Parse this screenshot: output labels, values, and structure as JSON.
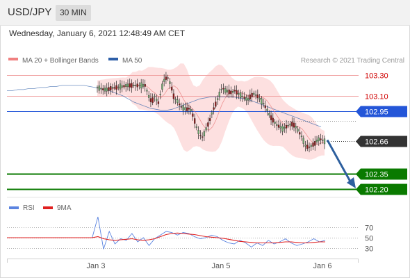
{
  "header": {
    "symbol": "USD/JPY",
    "timeframe": "30 MIN"
  },
  "datetime": "Wednesday, January 6, 2021 12:48:49 AM CET",
  "credit": "Research © 2021 Trading Central",
  "legend_main": [
    {
      "label": "MA 20 + Bollinger Bands",
      "color": "#f08080"
    },
    {
      "label": "MA 50",
      "color": "#2e5fa8"
    }
  ],
  "legend_rsi": [
    {
      "label": "RSI",
      "color": "#5b84e0"
    },
    {
      "label": "9MA",
      "color": "#e02020"
    }
  ],
  "colors": {
    "resistance": "#d00000",
    "pivot": "#2456d8",
    "support": "#0a7a00",
    "last": "#333333",
    "arrow": "#2d5f9e",
    "band_fill": "#fcd6d6"
  },
  "x_ticks": [
    "Jan 3",
    "Jan 5",
    "Jan 6"
  ],
  "rsi_ticks": [
    "70",
    "50",
    "30"
  ],
  "chart_data": [
    {
      "type": "candlestick",
      "x_ticks": [
        "Jan 3",
        "Jan 5",
        "Jan 6"
      ],
      "price_levels": [
        {
          "label": "103.30",
          "value": 103.3,
          "role": "resistance"
        },
        {
          "label": "103.10",
          "value": 103.1,
          "role": "resistance"
        },
        {
          "label": "102.95",
          "value": 102.95,
          "role": "pivot"
        },
        {
          "label": "102.66",
          "value": 102.66,
          "role": "last"
        },
        {
          "label": "102.35",
          "value": 102.35,
          "role": "support"
        },
        {
          "label": "102.20",
          "value": 102.2,
          "role": "support"
        }
      ],
      "close_path": [
        103.18,
        103.17,
        103.16,
        103.16,
        103.17,
        103.18,
        103.18,
        103.19,
        103.19,
        103.2,
        103.2,
        103.2,
        103.2,
        103.2,
        103.2,
        103.2,
        103.1,
        103.04,
        103.1,
        103.02,
        103.16,
        103.26,
        103.28,
        103.2,
        103.08,
        103.05,
        103.0,
        102.98,
        102.97,
        102.98,
        102.9,
        102.8,
        102.72,
        102.7,
        102.78,
        102.85,
        102.95,
        103.02,
        103.1,
        103.18,
        103.15,
        103.14,
        103.13,
        103.15,
        103.12,
        103.1,
        103.08,
        103.06,
        103.1,
        103.12,
        103.1,
        103.06,
        103.02,
        102.97,
        102.9,
        102.86,
        102.82,
        102.8,
        102.78,
        102.8,
        102.82,
        102.83,
        102.8,
        102.75,
        102.7,
        102.62,
        102.6,
        102.62,
        102.64,
        102.68,
        102.68,
        102.66
      ],
      "ma50": [
        103.15,
        103.15,
        103.16,
        103.16,
        103.17,
        103.17,
        103.18,
        103.18,
        103.19,
        103.19,
        103.2,
        103.2,
        103.2,
        103.2,
        103.2,
        103.19,
        103.18,
        103.17,
        103.16,
        103.14,
        103.12,
        103.1,
        103.07,
        103.04,
        103.02,
        103.0,
        102.98,
        102.97,
        102.96,
        102.96,
        102.97,
        102.99,
        103.01,
        103.03,
        103.05,
        103.07,
        103.08,
        103.09,
        103.09,
        103.09,
        103.09,
        103.09,
        103.08,
        103.07,
        103.06,
        103.04,
        103.02,
        103.0,
        102.98,
        102.96,
        102.94,
        102.92,
        102.9,
        102.88,
        102.86,
        102.84,
        102.82,
        102.8
      ]
    },
    {
      "type": "line",
      "title": "RSI",
      "ylim": [
        0,
        100
      ],
      "ticks": [
        70,
        50,
        30
      ],
      "series": [
        {
          "name": "RSI",
          "values": [
            50,
            50,
            50,
            50,
            50,
            50,
            50,
            50,
            50,
            50,
            50,
            50,
            50,
            50,
            50,
            50,
            90,
            28,
            62,
            38,
            48,
            45,
            58,
            42,
            50,
            35,
            48,
            55,
            62,
            60,
            55,
            60,
            58,
            52,
            48,
            50,
            55,
            52,
            45,
            40,
            38,
            45,
            40,
            32,
            40,
            35,
            45,
            38,
            42,
            48,
            40,
            35,
            38,
            42,
            48,
            42,
            45
          ]
        },
        {
          "name": "9MA",
          "values": [
            50,
            50,
            50,
            50,
            50,
            50,
            50,
            50,
            50,
            50,
            50,
            50,
            50,
            50,
            50,
            50,
            52,
            48,
            46,
            45,
            46,
            47,
            48,
            46,
            45,
            46,
            48,
            52,
            56,
            58,
            59,
            58,
            57,
            56,
            54,
            52,
            51,
            50,
            49,
            47,
            45,
            43,
            42,
            41,
            40,
            40,
            40,
            40,
            41,
            42,
            42,
            41,
            40,
            40,
            41,
            42,
            42
          ]
        }
      ]
    }
  ]
}
